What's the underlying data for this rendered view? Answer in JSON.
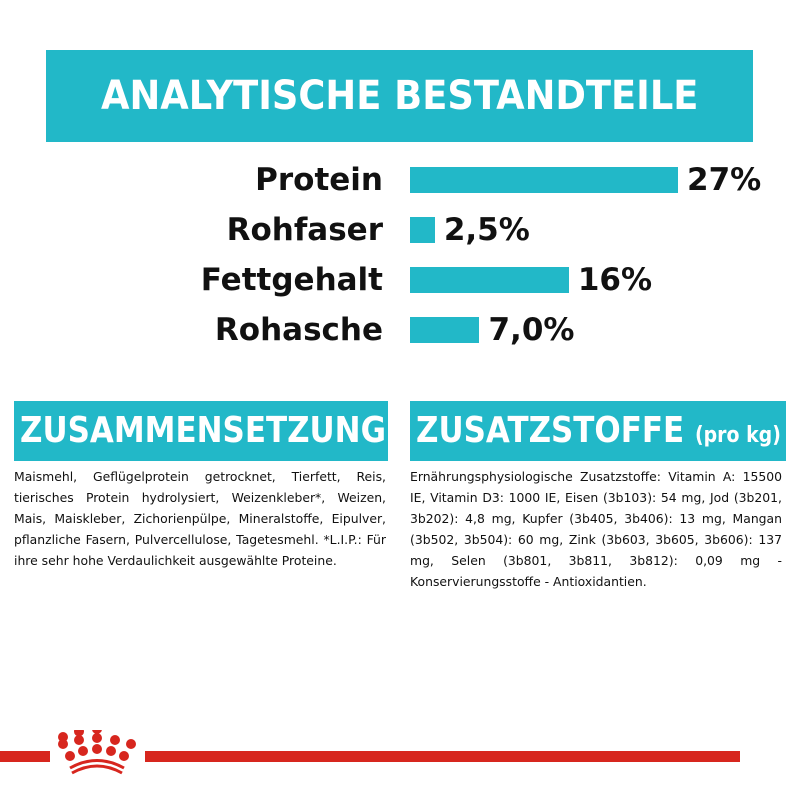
{
  "title": "ANALYTISCHE BESTANDTEILE",
  "nutrients": [
    {
      "label": "Protein",
      "value_text": "27%",
      "value": 27
    },
    {
      "label": "Rohfaser",
      "value_text": "2,5%",
      "value": 2.5
    },
    {
      "label": "Fettgehalt",
      "value_text": "16%",
      "value": 16
    },
    {
      "label": "Rohasche",
      "value_text": "7,0%",
      "value": 7.0
    }
  ],
  "composition": {
    "heading": "ZUSAMMENSETZUNG",
    "text": "Maismehl, Geflügelprotein getrocknet, Tierfett, Reis, tierisches Protein hydrolysiert, Weizenkleber*, Weizen, Mais, Maiskleber, Zichorienpülpe, Mineralstoffe, Eipulver, pflanzliche Fasern, Pulvercellulose, Tagetesmehl. *L.I.P.: Für ihre sehr hohe Verdaulichkeit ausgewählte Proteine."
  },
  "additives": {
    "heading": "ZUSATZSTOFFE",
    "heading_unit": "(pro kg)",
    "text": "Ernährungsphysiologische Zusatzstoffe: Vitamin A: 15500 IE, Vitamin D3: 1000 IE, Eisen (3b103): 54 mg, Jod (3b201, 3b202): 4,8 mg, Kupfer (3b405, 3b406): 13 mg, Mangan (3b502, 3b504): 60 mg, Zink (3b603, 3b605, 3b606): 137 mg, Selen (3b801, 3b811, 3b812): 0,09 mg - Konservierungsstoffe - Antioxidantien."
  },
  "colors": {
    "accent": "#22b8c8",
    "brand_red": "#d7261e"
  },
  "logo": "royal-canin-crown"
}
